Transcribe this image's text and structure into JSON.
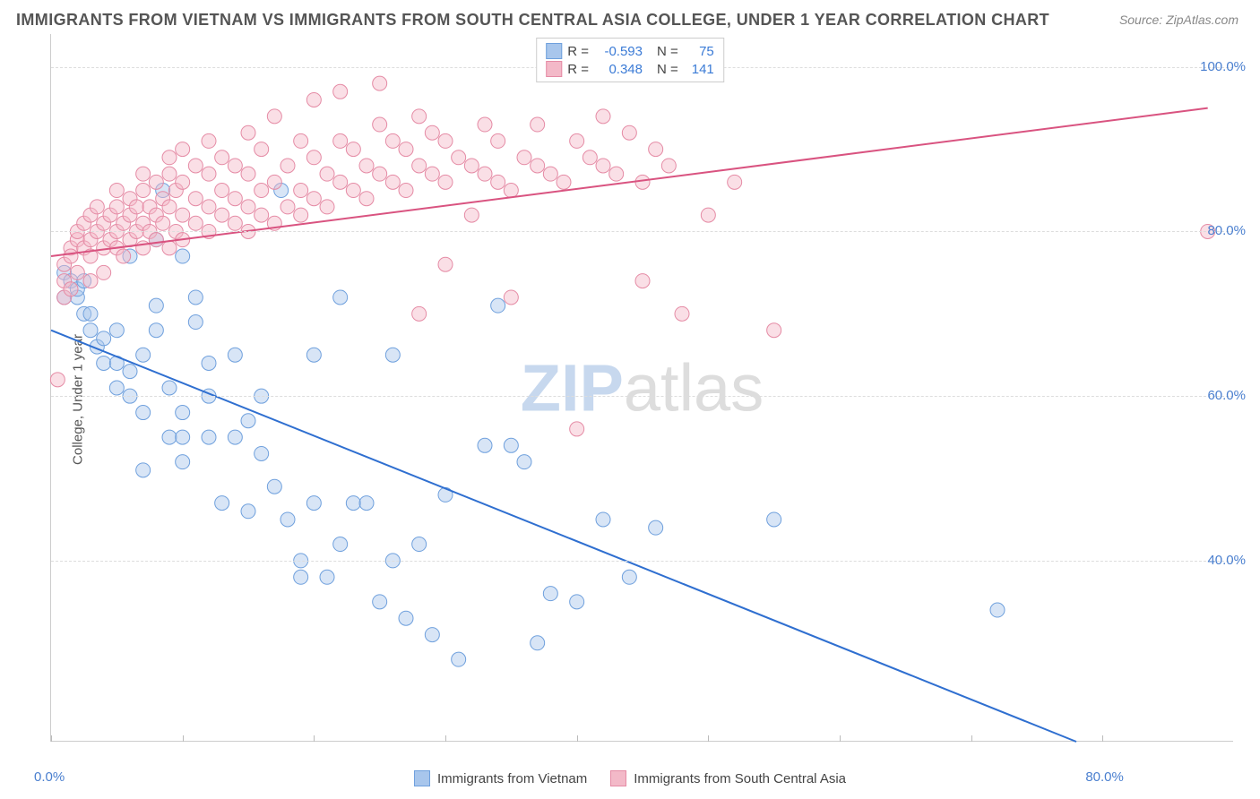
{
  "title": "IMMIGRANTS FROM VIETNAM VS IMMIGRANTS FROM SOUTH CENTRAL ASIA COLLEGE, UNDER 1 YEAR CORRELATION CHART",
  "source": "Source: ZipAtlas.com",
  "ylabel": "College, Under 1 year",
  "watermark_zip": "ZIP",
  "watermark_atlas": "atlas",
  "chart": {
    "type": "scatter",
    "background_color": "#ffffff",
    "grid_color": "#dddddd",
    "axis_color": "#cccccc",
    "text_color": "#555555",
    "tick_label_color": "#4a7fcf",
    "title_fontsize": 18,
    "label_fontsize": 15,
    "tick_fontsize": 15,
    "xlim": [
      0,
      90
    ],
    "ylim": [
      18,
      104
    ],
    "x_ticks": [
      0,
      10,
      20,
      30,
      40,
      50,
      60,
      70,
      80
    ],
    "x_tick_labels": {
      "0": "0.0%",
      "80": "80.0%"
    },
    "y_ticks": [
      40,
      60,
      80,
      100
    ],
    "y_tick_labels": {
      "40": "40.0%",
      "60": "60.0%",
      "80": "80.0%",
      "100": "100.0%"
    },
    "marker_radius": 8,
    "marker_opacity": 0.45,
    "line_width": 2,
    "series": [
      {
        "name": "Immigrants from Vietnam",
        "fill_color": "#a8c6ec",
        "stroke_color": "#6fa0dd",
        "line_color": "#2f6fd0",
        "R": "-0.593",
        "N": "75",
        "trend": {
          "x1": 0,
          "y1": 68,
          "x2": 78,
          "y2": 18
        },
        "points": [
          [
            1,
            75
          ],
          [
            1,
            72
          ],
          [
            1.5,
            74
          ],
          [
            2,
            72
          ],
          [
            2,
            73
          ],
          [
            2.5,
            74
          ],
          [
            2.5,
            70
          ],
          [
            3,
            68
          ],
          [
            3,
            70
          ],
          [
            3.5,
            66
          ],
          [
            4,
            64
          ],
          [
            4,
            67
          ],
          [
            5,
            61
          ],
          [
            5,
            64
          ],
          [
            5,
            68
          ],
          [
            6,
            60
          ],
          [
            6,
            63
          ],
          [
            6,
            77
          ],
          [
            7,
            51
          ],
          [
            7,
            58
          ],
          [
            7,
            65
          ],
          [
            8,
            79
          ],
          [
            8,
            68
          ],
          [
            8,
            71
          ],
          [
            8.5,
            85
          ],
          [
            9,
            61
          ],
          [
            9,
            55
          ],
          [
            10,
            55
          ],
          [
            10,
            52
          ],
          [
            10,
            58
          ],
          [
            10,
            77
          ],
          [
            11,
            69
          ],
          [
            11,
            72
          ],
          [
            12,
            55
          ],
          [
            12,
            60
          ],
          [
            12,
            64
          ],
          [
            13,
            47
          ],
          [
            14,
            55
          ],
          [
            14,
            65
          ],
          [
            15,
            46
          ],
          [
            15,
            57
          ],
          [
            16,
            53
          ],
          [
            16,
            60
          ],
          [
            17,
            49
          ],
          [
            17.5,
            85
          ],
          [
            18,
            45
          ],
          [
            19,
            38
          ],
          [
            19,
            40
          ],
          [
            20,
            47
          ],
          [
            20,
            65
          ],
          [
            21,
            38
          ],
          [
            22,
            42
          ],
          [
            22,
            72
          ],
          [
            23,
            47
          ],
          [
            24,
            47
          ],
          [
            25,
            35
          ],
          [
            26,
            40
          ],
          [
            26,
            65
          ],
          [
            27,
            33
          ],
          [
            28,
            42
          ],
          [
            29,
            31
          ],
          [
            30,
            48
          ],
          [
            31,
            28
          ],
          [
            33,
            54
          ],
          [
            34,
            71
          ],
          [
            35,
            54
          ],
          [
            36,
            52
          ],
          [
            37,
            30
          ],
          [
            38,
            36
          ],
          [
            40,
            35
          ],
          [
            42,
            45
          ],
          [
            44,
            38
          ],
          [
            46,
            44
          ],
          [
            55,
            45
          ],
          [
            72,
            34
          ]
        ]
      },
      {
        "name": "Immigrants from South Central Asia",
        "fill_color": "#f3b9c8",
        "stroke_color": "#e58ba5",
        "line_color": "#d95380",
        "R": "0.348",
        "N": "141",
        "trend": {
          "x1": 0,
          "y1": 77,
          "x2": 88,
          "y2": 95
        },
        "points": [
          [
            0.5,
            62
          ],
          [
            1,
            74
          ],
          [
            1,
            76
          ],
          [
            1,
            72
          ],
          [
            1.5,
            78
          ],
          [
            1.5,
            77
          ],
          [
            1.5,
            73
          ],
          [
            2,
            79
          ],
          [
            2,
            75
          ],
          [
            2,
            80
          ],
          [
            2.5,
            78
          ],
          [
            2.5,
            81
          ],
          [
            3,
            77
          ],
          [
            3,
            79
          ],
          [
            3,
            82
          ],
          [
            3,
            74
          ],
          [
            3.5,
            80
          ],
          [
            3.5,
            83
          ],
          [
            4,
            78
          ],
          [
            4,
            81
          ],
          [
            4,
            75
          ],
          [
            4.5,
            79
          ],
          [
            4.5,
            82
          ],
          [
            5,
            78
          ],
          [
            5,
            80
          ],
          [
            5,
            83
          ],
          [
            5,
            85
          ],
          [
            5.5,
            77
          ],
          [
            5.5,
            81
          ],
          [
            6,
            79
          ],
          [
            6,
            82
          ],
          [
            6,
            84
          ],
          [
            6.5,
            80
          ],
          [
            6.5,
            83
          ],
          [
            7,
            78
          ],
          [
            7,
            81
          ],
          [
            7,
            85
          ],
          [
            7,
            87
          ],
          [
            7.5,
            80
          ],
          [
            7.5,
            83
          ],
          [
            8,
            79
          ],
          [
            8,
            82
          ],
          [
            8,
            86
          ],
          [
            8.5,
            81
          ],
          [
            8.5,
            84
          ],
          [
            9,
            78
          ],
          [
            9,
            83
          ],
          [
            9,
            87
          ],
          [
            9,
            89
          ],
          [
            9.5,
            80
          ],
          [
            9.5,
            85
          ],
          [
            10,
            79
          ],
          [
            10,
            82
          ],
          [
            10,
            86
          ],
          [
            10,
            90
          ],
          [
            11,
            81
          ],
          [
            11,
            84
          ],
          [
            11,
            88
          ],
          [
            12,
            80
          ],
          [
            12,
            83
          ],
          [
            12,
            87
          ],
          [
            12,
            91
          ],
          [
            13,
            82
          ],
          [
            13,
            85
          ],
          [
            13,
            89
          ],
          [
            14,
            81
          ],
          [
            14,
            84
          ],
          [
            14,
            88
          ],
          [
            15,
            80
          ],
          [
            15,
            83
          ],
          [
            15,
            87
          ],
          [
            15,
            92
          ],
          [
            16,
            82
          ],
          [
            16,
            85
          ],
          [
            16,
            90
          ],
          [
            17,
            81
          ],
          [
            17,
            86
          ],
          [
            17,
            94
          ],
          [
            18,
            83
          ],
          [
            18,
            88
          ],
          [
            19,
            82
          ],
          [
            19,
            85
          ],
          [
            19,
            91
          ],
          [
            20,
            84
          ],
          [
            20,
            89
          ],
          [
            20,
            96
          ],
          [
            21,
            83
          ],
          [
            21,
            87
          ],
          [
            22,
            86
          ],
          [
            22,
            91
          ],
          [
            22,
            97
          ],
          [
            23,
            85
          ],
          [
            23,
            90
          ],
          [
            24,
            84
          ],
          [
            24,
            88
          ],
          [
            25,
            87
          ],
          [
            25,
            93
          ],
          [
            25,
            98
          ],
          [
            26,
            86
          ],
          [
            26,
            91
          ],
          [
            27,
            85
          ],
          [
            27,
            90
          ],
          [
            28,
            70
          ],
          [
            28,
            88
          ],
          [
            28,
            94
          ],
          [
            29,
            87
          ],
          [
            29,
            92
          ],
          [
            30,
            86
          ],
          [
            30,
            76
          ],
          [
            30,
            91
          ],
          [
            31,
            89
          ],
          [
            32,
            82
          ],
          [
            32,
            88
          ],
          [
            33,
            87
          ],
          [
            33,
            93
          ],
          [
            34,
            86
          ],
          [
            34,
            91
          ],
          [
            35,
            85
          ],
          [
            35,
            72
          ],
          [
            36,
            89
          ],
          [
            37,
            88
          ],
          [
            37,
            93
          ],
          [
            38,
            87
          ],
          [
            39,
            86
          ],
          [
            40,
            91
          ],
          [
            40,
            56
          ],
          [
            41,
            89
          ],
          [
            42,
            88
          ],
          [
            42,
            94
          ],
          [
            43,
            87
          ],
          [
            44,
            92
          ],
          [
            45,
            86
          ],
          [
            45,
            74
          ],
          [
            46,
            90
          ],
          [
            47,
            88
          ],
          [
            48,
            70
          ],
          [
            50,
            82
          ],
          [
            52,
            86
          ],
          [
            55,
            68
          ],
          [
            88,
            80
          ]
        ]
      }
    ]
  }
}
